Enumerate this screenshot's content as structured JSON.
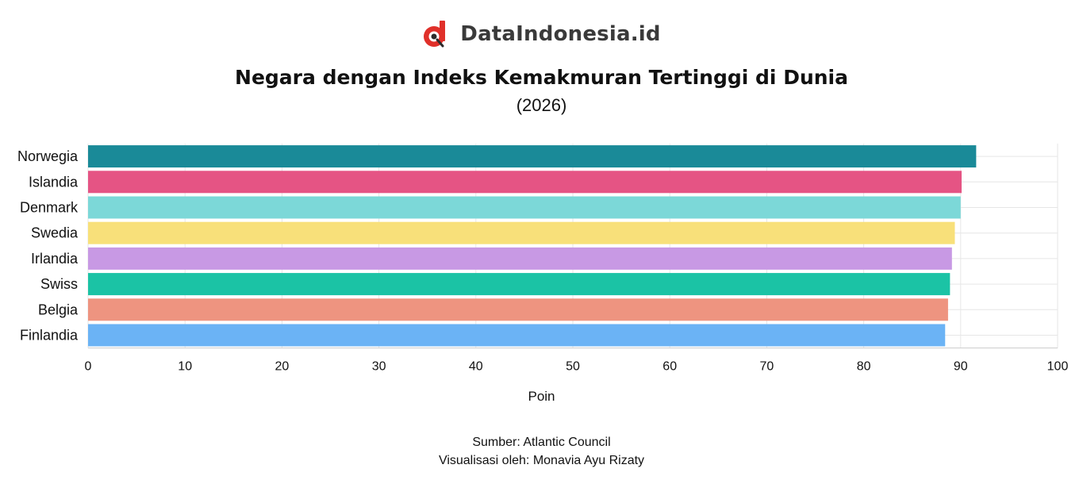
{
  "brand": {
    "name": "DataIndonesia.id",
    "logo_icon": "data-indonesia-logo-icon",
    "logo_color": "#e0302a"
  },
  "chart_data": {
    "type": "bar",
    "orientation": "horizontal",
    "title": "Negara dengan Indeks Kemakmuran Tertinggi di Dunia",
    "subtitle": "(2026)",
    "xlabel": "Poin",
    "ylabel": "",
    "xlim": [
      0,
      100
    ],
    "xticks": [
      0,
      10,
      20,
      30,
      40,
      50,
      60,
      70,
      80,
      90,
      100
    ],
    "grid": true,
    "categories": [
      "Norwegia",
      "Islandia",
      "Denmark",
      "Swedia",
      "Irlandia",
      "Swiss",
      "Belgia",
      "Finlandia"
    ],
    "values": [
      91.6,
      90.1,
      90.0,
      89.4,
      89.1,
      88.9,
      88.7,
      88.4
    ],
    "colors": [
      "#1a8a98",
      "#e55484",
      "#7cd8d8",
      "#f8e07a",
      "#c899e4",
      "#1bc3a5",
      "#ee9480",
      "#6bb3f5"
    ]
  },
  "footer": {
    "source": "Sumber: Atlantic Council",
    "credit": "Visualisasi oleh: Monavia Ayu Rizaty"
  }
}
